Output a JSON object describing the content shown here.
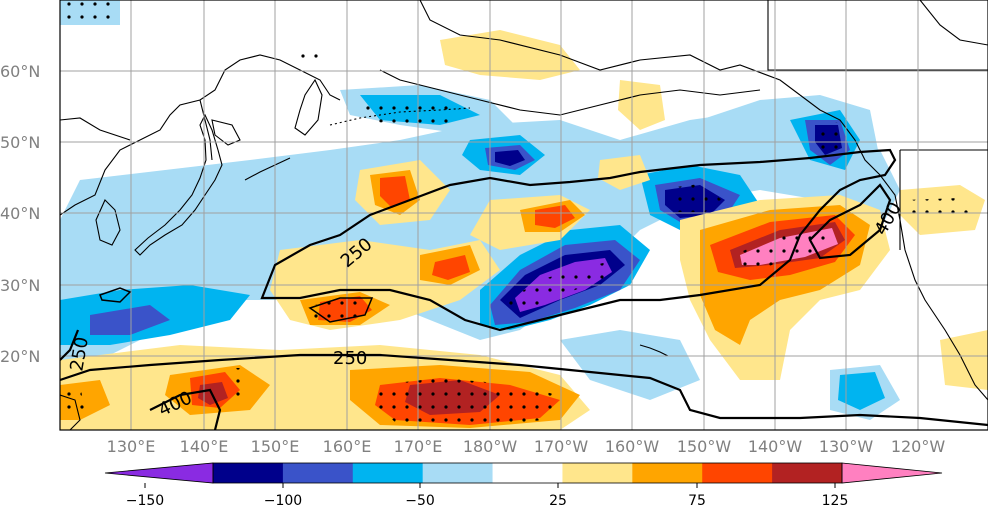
{
  "map": {
    "lat_labels": [
      "60°N",
      "50°N",
      "40°N",
      "30°N",
      "20°N"
    ],
    "lon_labels": [
      "130°E",
      "140°E",
      "150°E",
      "160°E",
      "170°E",
      "180°W",
      "170°W",
      "160°W",
      "150°W",
      "140°W",
      "130°W",
      "120°W"
    ],
    "contour_labels": [
      "250",
      "250",
      "400",
      "400",
      "250"
    ]
  },
  "colorbar": {
    "tick_labels": [
      "−150",
      "−100",
      "−50",
      "25",
      "75",
      "125"
    ],
    "colors": [
      "#8a2be2",
      "#00008b",
      "#3a53c9",
      "#00b4f0",
      "#a8dcf5",
      "#ffffff",
      "#ffe68c",
      "#ffa500",
      "#ff4500",
      "#b22222",
      "#ff80c0"
    ]
  }
}
